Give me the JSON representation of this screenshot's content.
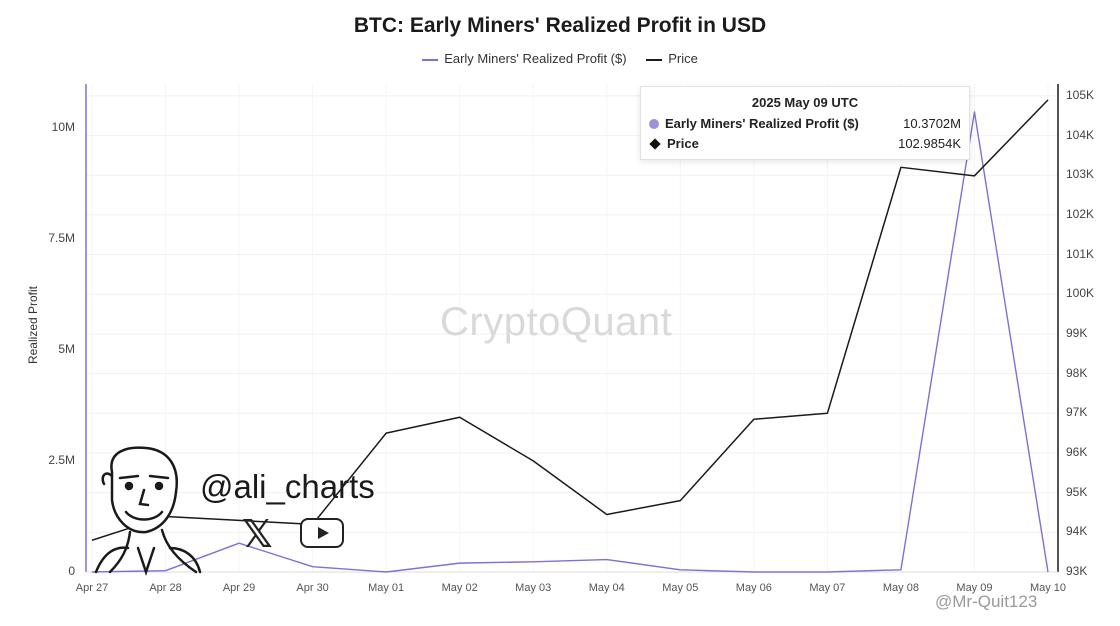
{
  "chart_data": {
    "type": "line",
    "title": "BTC: Early Miners' Realized Profit in USD",
    "ylabel_left": "Realized Profit",
    "categories": [
      "Apr 27",
      "Apr 28",
      "Apr 29",
      "Apr 30",
      "May 01",
      "May 02",
      "May 03",
      "May 04",
      "May 05",
      "May 06",
      "May 07",
      "May 08",
      "May 09",
      "May 10"
    ],
    "left_axis": {
      "ticks": [
        "0",
        "2.5M",
        "5M",
        "7.5M",
        "10M"
      ],
      "tick_values": [
        0,
        2500000,
        5000000,
        7500000,
        10000000
      ],
      "range": [
        0,
        11000000
      ]
    },
    "right_axis": {
      "ticks": [
        "93K",
        "94K",
        "95K",
        "96K",
        "97K",
        "98K",
        "99K",
        "100K",
        "101K",
        "102K",
        "103K",
        "104K",
        "105K"
      ],
      "tick_values": [
        93000,
        94000,
        95000,
        96000,
        97000,
        98000,
        99000,
        100000,
        101000,
        102000,
        103000,
        104000,
        105000
      ],
      "range": [
        93000,
        105300
      ]
    },
    "series": [
      {
        "name": "Early Miners' Realized Profit ($)",
        "axis": "left",
        "color": "#7b72d6",
        "values": [
          0,
          30000,
          650000,
          120000,
          0,
          200000,
          230000,
          280000,
          50000,
          0,
          0,
          50000,
          10370200,
          0
        ]
      },
      {
        "name": "Price",
        "axis": "right",
        "color": "#1a1a1a",
        "values": [
          93800,
          94400,
          94300,
          94200,
          96500,
          96900,
          95800,
          94450,
          94800,
          96850,
          97000,
          103200,
          102985.4,
          104900
        ]
      }
    ],
    "grid": true,
    "legend": "top-center"
  },
  "watermark": "CryptoQuant",
  "tooltip": {
    "date": "2025 May 09 UTC",
    "rows": [
      {
        "label": "Early Miners' Realized Profit ($)",
        "value": "10.3702M"
      },
      {
        "label": "Price",
        "value": "102.9854K"
      }
    ]
  },
  "overlay": {
    "handle": "@ali_charts",
    "x_logo": "𝕏",
    "credit": "@Mr-Quit123"
  }
}
